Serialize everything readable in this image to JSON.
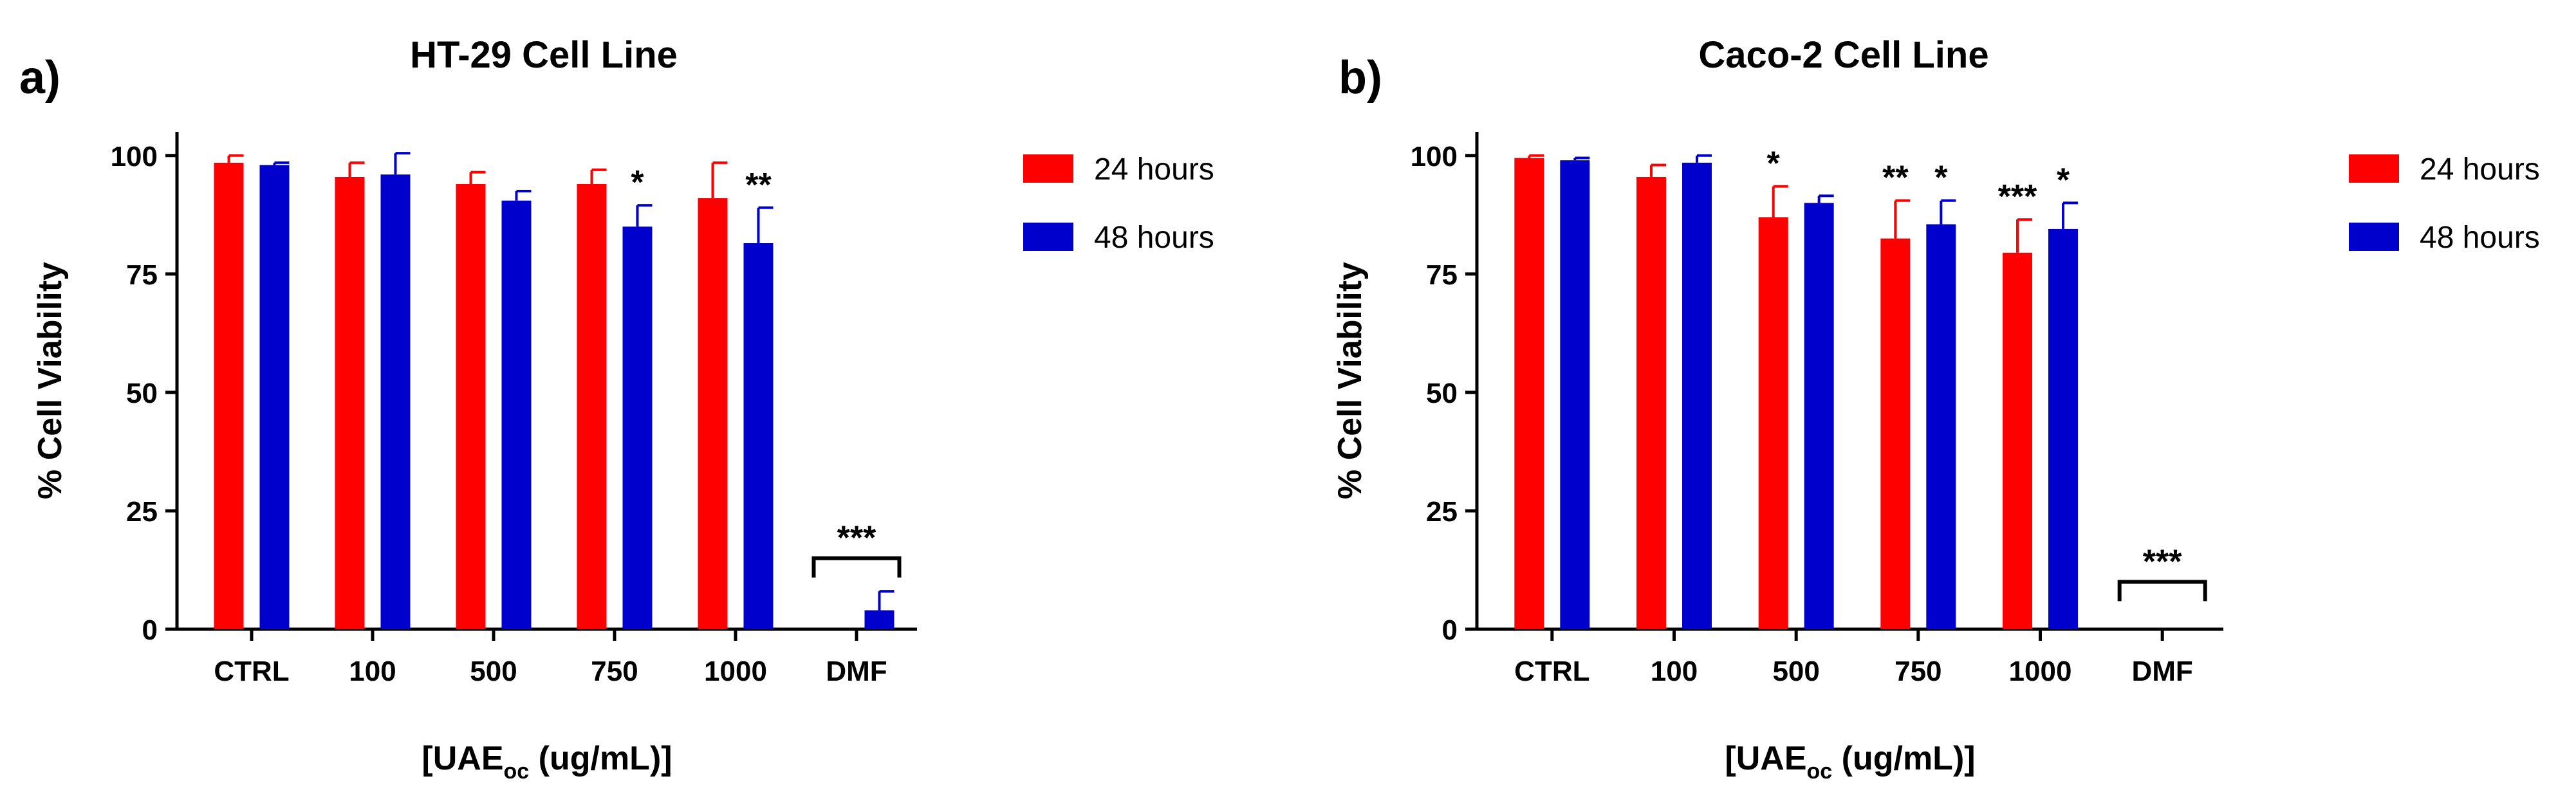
{
  "colors": {
    "series_24h": "#ff0000",
    "series_48h": "#0000cc",
    "axis": "#000000"
  },
  "chart_data": [
    {
      "type": "bar",
      "panel_label": "a)",
      "title": "HT-29 Cell Line",
      "ylabel": "% Cell Viability",
      "xlabel": {
        "main": "[UAE",
        "sub": "oc",
        "rest": " (ug/mL)]"
      },
      "ylim": [
        0,
        105
      ],
      "yticks": [
        0,
        25,
        50,
        75,
        100
      ],
      "categories": [
        "CTRL",
        "100",
        "500",
        "750",
        "1000",
        "DMF"
      ],
      "series": [
        {
          "name": "24 hours",
          "color": "#ff0000",
          "values": [
            98.5,
            95.5,
            94,
            94,
            91,
            0
          ],
          "errors": [
            1.5,
            3,
            2.5,
            3,
            7.5,
            0
          ]
        },
        {
          "name": "48 hours",
          "color": "#0000cc",
          "values": [
            98,
            96,
            90.5,
            85,
            81.5,
            4
          ],
          "errors": [
            0.5,
            4.5,
            2,
            4.5,
            7.5,
            4
          ]
        }
      ],
      "annotations": [
        {
          "category": "750",
          "series": "48 hours",
          "text": "*"
        },
        {
          "category": "1000",
          "series": "48 hours",
          "text": "**"
        },
        {
          "category": "DMF",
          "series": "bracket",
          "text": "***",
          "bracket_at": 15
        }
      ]
    },
    {
      "type": "bar",
      "panel_label": "b)",
      "title": "Caco-2 Cell Line",
      "ylabel": "% Cell Viability",
      "xlabel": {
        "main": "[UAE",
        "sub": "oc",
        "rest": " (ug/mL)]"
      },
      "ylim": [
        0,
        105
      ],
      "yticks": [
        0,
        25,
        50,
        75,
        100
      ],
      "categories": [
        "CTRL",
        "100",
        "500",
        "750",
        "1000",
        "DMF"
      ],
      "series": [
        {
          "name": "24 hours",
          "color": "#ff0000",
          "values": [
            99.5,
            95.5,
            87,
            82.5,
            79.5,
            0
          ],
          "errors": [
            0.5,
            2.5,
            6.5,
            8,
            7,
            0
          ]
        },
        {
          "name": "48 hours",
          "color": "#0000cc",
          "values": [
            99,
            98.5,
            90,
            85.5,
            84.5,
            0
          ],
          "errors": [
            0.5,
            1.5,
            1.5,
            5,
            5.5,
            0
          ]
        }
      ],
      "annotations": [
        {
          "category": "500",
          "series": "24 hours",
          "text": "*"
        },
        {
          "category": "750",
          "series": "24 hours",
          "text": "**"
        },
        {
          "category": "750",
          "series": "48 hours",
          "text": "*"
        },
        {
          "category": "1000",
          "series": "24 hours",
          "text": "***"
        },
        {
          "category": "1000",
          "series": "48 hours",
          "text": "*"
        },
        {
          "category": "DMF",
          "series": "bracket",
          "text": "***",
          "bracket_at": 10
        }
      ]
    }
  ]
}
